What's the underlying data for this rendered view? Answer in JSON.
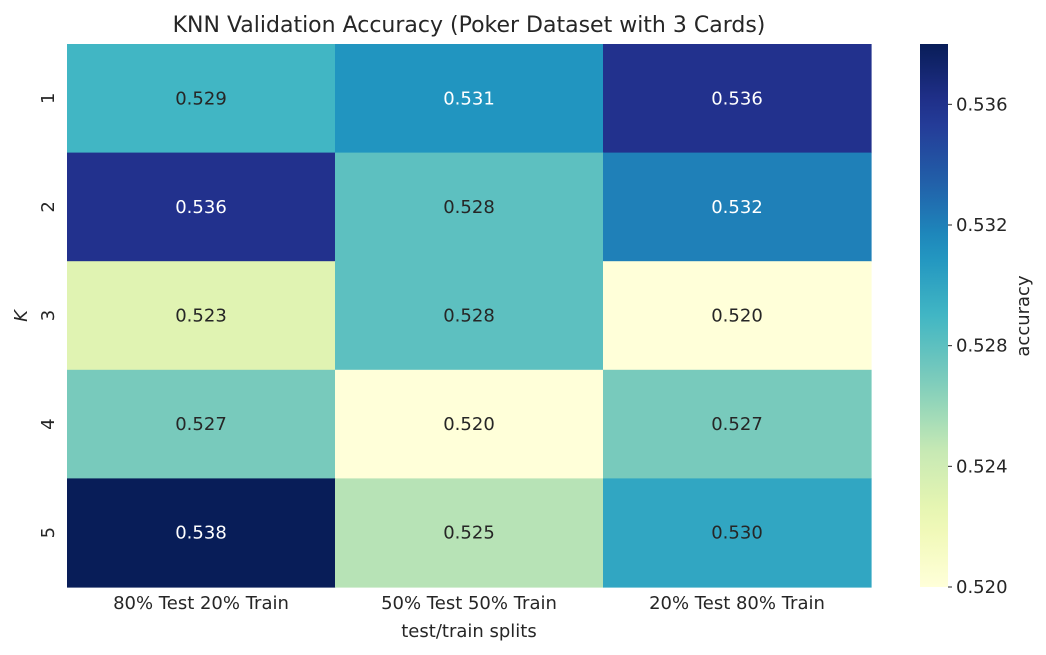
{
  "chart_data": {
    "type": "heatmap",
    "title": "KNN Validation Accuracy (Poker Dataset with 3 Cards)",
    "xlabel": "test/train splits",
    "ylabel": "K",
    "x_categories": [
      "80% Test 20% Train",
      "50% Test 50% Train",
      "20% Test 80% Train"
    ],
    "y_categories": [
      "1",
      "2",
      "3",
      "4",
      "5"
    ],
    "values": [
      [
        0.529,
        0.531,
        0.536
      ],
      [
        0.536,
        0.528,
        0.532
      ],
      [
        0.523,
        0.528,
        0.52
      ],
      [
        0.527,
        0.52,
        0.527
      ],
      [
        0.538,
        0.525,
        0.53
      ]
    ],
    "value_labels": [
      [
        "0.529",
        "0.531",
        "0.536"
      ],
      [
        "0.536",
        "0.528",
        "0.532"
      ],
      [
        "0.523",
        "0.528",
        "0.520"
      ],
      [
        "0.527",
        "0.520",
        "0.527"
      ],
      [
        "0.538",
        "0.525",
        "0.530"
      ]
    ],
    "colormap": "YlGnBu",
    "colorbar": {
      "label": "accuracy",
      "range": [
        0.52,
        0.538
      ],
      "ticks": [
        "0.520",
        "0.524",
        "0.528",
        "0.532",
        "0.536"
      ]
    }
  }
}
